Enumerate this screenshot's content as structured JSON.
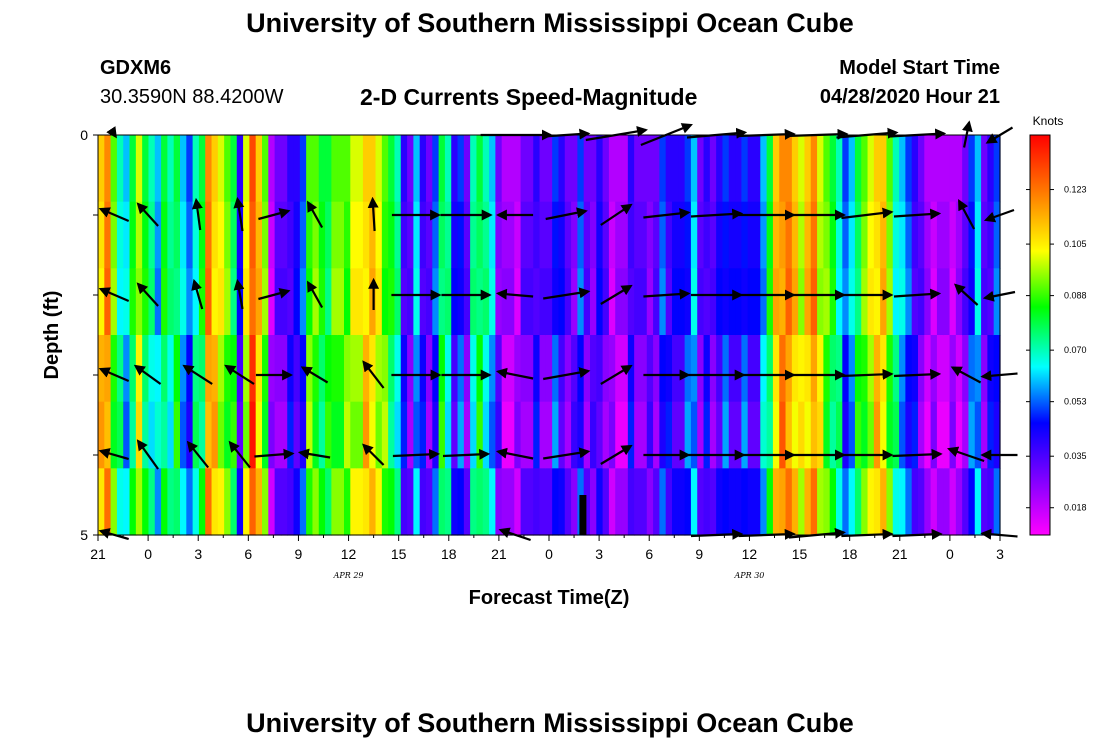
{
  "header": {
    "title": "University of Southern Mississippi Ocean Cube",
    "station": "GDXM6",
    "coordinates": "30.3590N 88.4200W",
    "subtitle": "2-D Currents Speed-Magnitude",
    "model_start_label": "Model Start Time",
    "model_start_value": "04/28/2020 Hour 21"
  },
  "footer": {
    "title": "University of Southern Mississippi Ocean Cube"
  },
  "chart_data": {
    "type": "heatmap",
    "title": "2-D Currents Speed-Magnitude",
    "xlabel": "Forecast Time(Z)",
    "ylabel": "Depth (ft)",
    "x_range_hours": [
      0,
      54
    ],
    "x_tick_labels": [
      "21",
      "0",
      "3",
      "6",
      "9",
      "12",
      "15",
      "18",
      "21",
      "0",
      "3",
      "6",
      "9",
      "12",
      "15",
      "18",
      "21",
      "0",
      "3"
    ],
    "date_labels": [
      {
        "label": "APR 29",
        "hour": 15
      },
      {
        "label": "APR 30",
        "hour": 39
      }
    ],
    "y_range": [
      0,
      5
    ],
    "y_tick_labels": [
      "0",
      "5"
    ],
    "colorbar": {
      "unit": "Knots",
      "range": [
        0.009,
        0.141
      ],
      "tick_values": [
        0.018,
        0.035,
        0.053,
        0.07,
        0.088,
        0.105,
        0.123
      ],
      "tick_labels": [
        "0.018",
        "0.035",
        "0.053",
        "0.070",
        "0.088",
        "0.105",
        "0.123"
      ]
    },
    "now_marker_hour": 29,
    "speed_columns": [
      0.11,
      0.12,
      0.09,
      0.07,
      0.06,
      0.08,
      0.1,
      0.08,
      0.07,
      0.06,
      0.08,
      0.07,
      0.08,
      0.06,
      0.05,
      0.07,
      0.08,
      0.12,
      0.11,
      0.1,
      0.09,
      0.08,
      0.04,
      0.1,
      0.13,
      0.11,
      0.09,
      0.02,
      0.03,
      0.03,
      0.04,
      0.04,
      0.05,
      0.09,
      0.09,
      0.08,
      0.08,
      0.09,
      0.09,
      0.09,
      0.1,
      0.1,
      0.11,
      0.11,
      0.1,
      0.09,
      0.08,
      0.07,
      0.04,
      0.03,
      0.06,
      0.04,
      0.03,
      0.05,
      0.08,
      0.07,
      0.04,
      0.05,
      0.03,
      0.07,
      0.08,
      0.07,
      0.06,
      0.03,
      0.02,
      0.02,
      0.02,
      0.03,
      0.03,
      0.04,
      0.03,
      0.03,
      0.05,
      0.04,
      0.03,
      0.03,
      0.05,
      0.03,
      0.03,
      0.04,
      0.03,
      0.02,
      0.02,
      0.02,
      0.04,
      0.03,
      0.03,
      0.03,
      0.03,
      0.05,
      0.04,
      0.04,
      0.04,
      0.05,
      0.06,
      0.03,
      0.04,
      0.03,
      0.04,
      0.05,
      0.04,
      0.04,
      0.05,
      0.04,
      0.04,
      0.06,
      0.08,
      0.11,
      0.12,
      0.12,
      0.11,
      0.1,
      0.11,
      0.12,
      0.1,
      0.09,
      0.08,
      0.07,
      0.05,
      0.06,
      0.08,
      0.09,
      0.1,
      0.11,
      0.11,
      0.09,
      0.07,
      0.06,
      0.05,
      0.04,
      0.03,
      0.02,
      0.02,
      0.02,
      0.02,
      0.02,
      0.02,
      0.03,
      0.05,
      0.06,
      0.03,
      0.04,
      0.05
    ],
    "depth_modulation": [
      0.0,
      0.003,
      0.006,
      -0.004,
      -0.008,
      0.004
    ],
    "vectors": {
      "depth_rows": [
        0,
        1,
        2,
        3,
        4,
        5
      ],
      "times": [
        1,
        3,
        6,
        8.5,
        10.5,
        13,
        16.5,
        19,
        22,
        25,
        28,
        31,
        34,
        37,
        40,
        43,
        46,
        49,
        52,
        54
      ],
      "rows": [
        [
          [
            2,
            3
          ],
          null,
          null,
          null,
          null,
          null,
          null,
          null,
          null,
          [
            70,
            0
          ],
          [
            45,
            -3
          ],
          [
            60,
            -10
          ],
          [
            50,
            -20
          ],
          [
            58,
            -5
          ],
          [
            55,
            -2
          ],
          [
            60,
            -2
          ],
          [
            60,
            -5
          ],
          [
            55,
            -3
          ],
          [
            5,
            -25
          ],
          [
            -25,
            15
          ]
        ],
        [
          [
            -28,
            -12
          ],
          [
            -20,
            -22
          ],
          [
            -4,
            -30
          ],
          [
            -5,
            -32
          ],
          [
            30,
            -8
          ],
          [
            -14,
            -25
          ],
          [
            -2,
            -32
          ],
          [
            47,
            0
          ],
          [
            50,
            0
          ],
          [
            -35,
            0
          ],
          [
            40,
            -8
          ],
          [
            30,
            -20
          ],
          [
            45,
            -5
          ],
          [
            50,
            -3
          ],
          [
            55,
            0
          ],
          [
            55,
            0
          ],
          [
            50,
            -6
          ],
          [
            45,
            -3
          ],
          [
            -15,
            -28
          ],
          [
            -28,
            10
          ]
        ],
        [
          [
            -28,
            -12
          ],
          [
            -20,
            -22
          ],
          [
            -8,
            -28
          ],
          [
            -5,
            -28
          ],
          [
            30,
            -8
          ],
          [
            -14,
            -25
          ],
          [
            0,
            -30
          ],
          [
            48,
            0
          ],
          [
            48,
            0
          ],
          [
            -35,
            -3
          ],
          [
            45,
            -7
          ],
          [
            30,
            -18
          ],
          [
            45,
            -3
          ],
          [
            50,
            0
          ],
          [
            55,
            0
          ],
          [
            55,
            0
          ],
          [
            50,
            0
          ],
          [
            45,
            -3
          ],
          [
            -22,
            -20
          ],
          [
            -30,
            6
          ]
        ],
        [
          [
            -28,
            -12
          ],
          [
            -25,
            -18
          ],
          [
            -28,
            -18
          ],
          [
            -28,
            -18
          ],
          [
            35,
            0
          ],
          [
            -25,
            -15
          ],
          [
            -20,
            -26
          ],
          [
            48,
            0
          ],
          [
            48,
            0
          ],
          [
            -35,
            -7
          ],
          [
            45,
            -8
          ],
          [
            30,
            -18
          ],
          [
            45,
            0
          ],
          [
            55,
            0
          ],
          [
            55,
            0
          ],
          [
            55,
            0
          ],
          [
            50,
            -2
          ],
          [
            45,
            -2
          ],
          [
            -28,
            -15
          ],
          [
            -35,
            3
          ]
        ],
        [
          [
            -28,
            -8
          ],
          [
            -20,
            -28
          ],
          [
            -20,
            -25
          ],
          [
            -20,
            -25
          ],
          [
            38,
            -3
          ],
          [
            -30,
            -5
          ],
          [
            -20,
            -20
          ],
          [
            45,
            -2
          ],
          [
            45,
            -2
          ],
          [
            -35,
            -7
          ],
          [
            45,
            -7
          ],
          [
            30,
            -18
          ],
          [
            45,
            0
          ],
          [
            55,
            0
          ],
          [
            55,
            0
          ],
          [
            55,
            0
          ],
          [
            50,
            0
          ],
          [
            48,
            -2
          ],
          [
            -35,
            -12
          ],
          [
            -35,
            0
          ]
        ],
        [
          [
            -28,
            -8
          ],
          null,
          null,
          null,
          null,
          null,
          null,
          null,
          null,
          [
            -30,
            -10
          ],
          null,
          null,
          null,
          [
            50,
            -2
          ],
          [
            55,
            -2
          ],
          [
            55,
            -5
          ],
          [
            50,
            -2
          ],
          [
            48,
            -2
          ],
          null,
          [
            -35,
            -3
          ]
        ]
      ]
    }
  }
}
